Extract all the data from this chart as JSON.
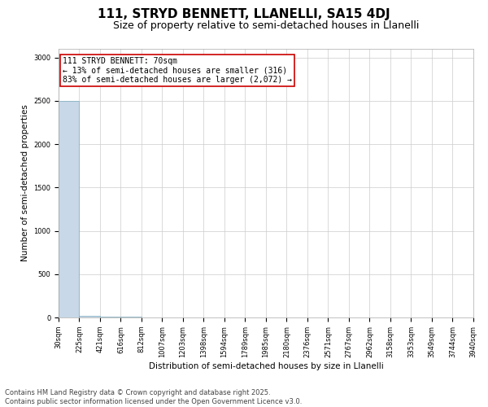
{
  "title": "111, STRYD BENNETT, LLANELLI, SA15 4DJ",
  "subtitle": "Size of property relative to semi-detached houses in Llanelli",
  "xlabel": "Distribution of semi-detached houses by size in Llanelli",
  "ylabel": "Number of semi-detached properties",
  "bin_edges": [
    30,
    225,
    421,
    616,
    812,
    1007,
    1203,
    1398,
    1594,
    1789,
    1985,
    2180,
    2376,
    2571,
    2767,
    2962,
    3158,
    3353,
    3549,
    3744,
    3940
  ],
  "bar_heights": [
    2500,
    20,
    10,
    5,
    3,
    2,
    2,
    1,
    1,
    1,
    1,
    1,
    1,
    1,
    0,
    0,
    0,
    0,
    0,
    0
  ],
  "bar_color": "#c8d8e8",
  "bar_edge_color": "#7aaabb",
  "annotation_text_line1": "111 STRYD BENNETT: 70sqm",
  "annotation_text_line2": "← 13% of semi-detached houses are smaller (316)",
  "annotation_text_line3": "83% of semi-detached houses are larger (2,072) →",
  "annotation_box_edge_color": "#cc0000",
  "ylim": [
    0,
    3100
  ],
  "yticks": [
    0,
    500,
    1000,
    1500,
    2000,
    2500,
    3000
  ],
  "footer_line1": "Contains HM Land Registry data © Crown copyright and database right 2025.",
  "footer_line2": "Contains public sector information licensed under the Open Government Licence v3.0.",
  "background_color": "#ffffff",
  "grid_color": "#cccccc",
  "title_fontsize": 11,
  "subtitle_fontsize": 9,
  "axis_label_fontsize": 7.5,
  "tick_fontsize": 6,
  "annotation_fontsize": 7,
  "footer_fontsize": 6
}
